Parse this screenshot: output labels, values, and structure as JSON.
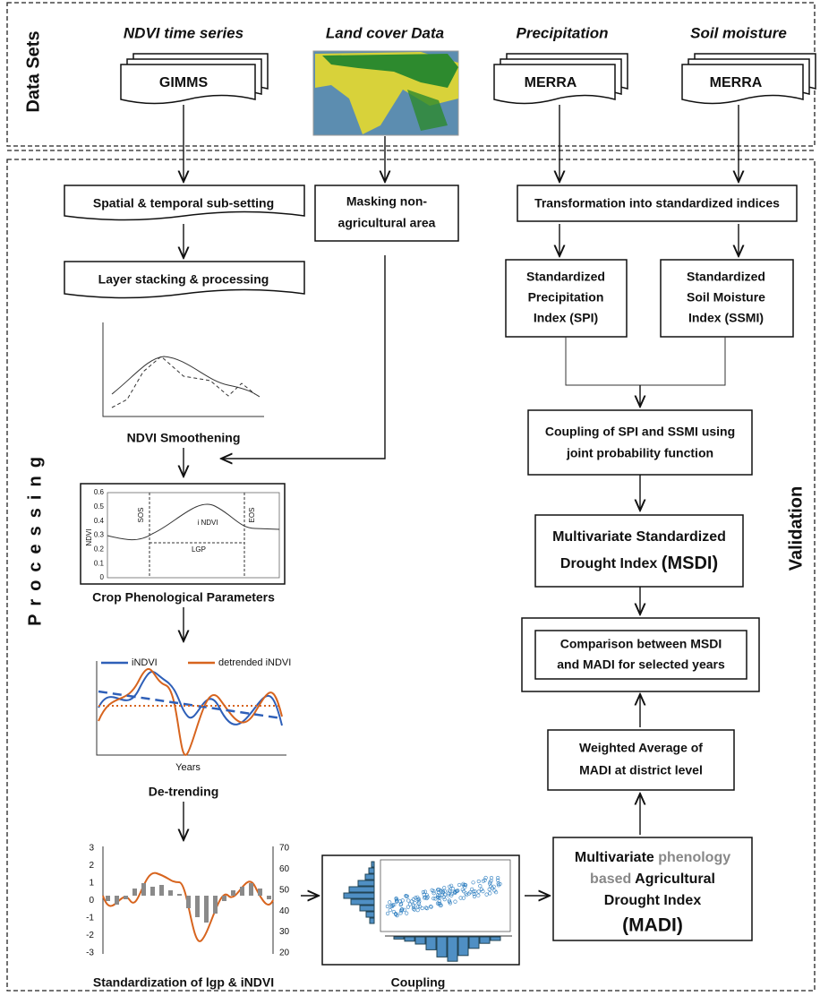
{
  "sections": {
    "data_sets": "Data Sets",
    "processing": "Processing",
    "validation": "Validation"
  },
  "inputs": [
    {
      "heading": "NDVI time series",
      "source": "GIMMS"
    },
    {
      "heading": "Land cover Data"
    },
    {
      "heading": "Precipitation",
      "source": "MERRA"
    },
    {
      "heading": "Soil moisture",
      "source": "MERRA"
    }
  ],
  "steps": {
    "subsetting": "Spatial & temporal sub-setting",
    "masking": [
      "Masking non-",
      "agricultural area"
    ],
    "transformation": "Transformation into standardized indices",
    "stacking": "Layer stacking & processing",
    "spi": [
      "Standardized",
      "Precipitation",
      "Index (SPI)"
    ],
    "ssmi": [
      "Standardized",
      "Soil Moisture",
      "Index (SSMI)"
    ],
    "smoothening": "NDVI Smoothening",
    "coupling_spi": [
      "Coupling of SPI and SSMI using",
      "joint probability function"
    ],
    "msdi": [
      "Multivariate Standardized",
      "Drought Index ",
      "(MSDI)"
    ],
    "phenology": "Crop Phenological Parameters",
    "comparison": [
      "Comparison between MSDI",
      "and MADI for selected years"
    ],
    "detrending": "De-trending",
    "weighted": [
      "Weighted Average of",
      "MADI at district level"
    ],
    "madi": [
      "Multivariate ",
      "phenology",
      "based",
      " Agricultural",
      "Drought Index",
      "(MADI)"
    ],
    "standardization": "Standardization of lgp & iNDVI",
    "coupling": "Coupling"
  },
  "phenology_chart": {
    "yticks": [
      "0.6",
      "0.5",
      "0.4",
      "0.3",
      "0.2",
      "0.1",
      "0"
    ],
    "ylabel": "NDVI",
    "sos": "SOS",
    "eos": "EOS",
    "indvi": "i NDVI",
    "lgp": "LGP"
  },
  "detrend_chart": {
    "legend": [
      "iNDVI",
      "detrended iNDVI"
    ],
    "xlabel": "Years"
  },
  "standard_chart": {
    "left_ticks": [
      "3",
      "2",
      "1",
      "0",
      "-1",
      "-2",
      "-3"
    ],
    "right_ticks": [
      "70",
      "60",
      "50",
      "40",
      "30",
      "20"
    ]
  }
}
